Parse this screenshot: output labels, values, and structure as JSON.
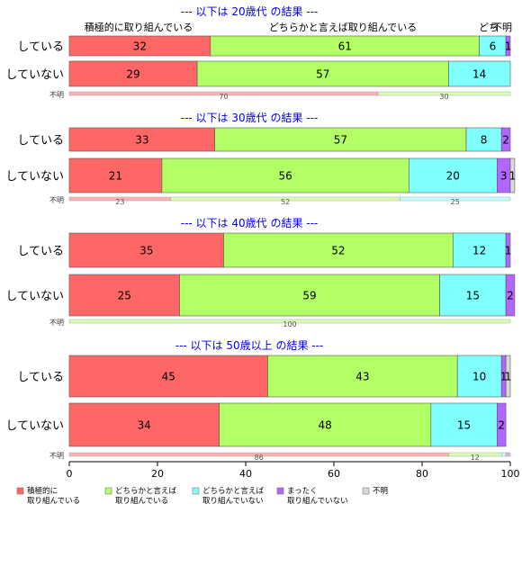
{
  "chart_data": {
    "type": "bar",
    "orientation": "horizontal",
    "stacked": true,
    "xlim": [
      0,
      100
    ],
    "x_ticks": [
      0,
      20,
      40,
      60,
      80,
      100
    ],
    "top_headers": [
      "積極的に取り組んでいる",
      "どちらかと言えば取り組んでいる",
      "どち",
      "不明"
    ],
    "categories_legend": [
      {
        "label": "積極的に\n取り組んでいる",
        "color": "#ff6666"
      },
      {
        "label": "どちらかと言えば\n取り組んでいる",
        "color": "#b3ff66"
      },
      {
        "label": "どちらかと言えば\n取り組んでいない",
        "color": "#80ffff"
      },
      {
        "label": "まったく\n取り組んでいない",
        "color": "#b266ff"
      },
      {
        "label": "不明",
        "color": "#d9d9d9"
      }
    ],
    "groups": [
      {
        "title": "--- 以下は 20歳代 の結果 ---",
        "rows": [
          {
            "label": "している",
            "values": [
              32,
              61,
              6,
              1,
              0
            ]
          },
          {
            "label": "していない",
            "values": [
              29,
              57,
              14,
              0,
              0
            ]
          }
        ],
        "unknown": {
          "label": "不明",
          "values": [
            70,
            30,
            0,
            0,
            0
          ]
        }
      },
      {
        "title": "--- 以下は 30歳代 の結果 ---",
        "rows": [
          {
            "label": "している",
            "values": [
              33,
              57,
              8,
              2,
              0
            ]
          },
          {
            "label": "していない",
            "values": [
              21,
              56,
              20,
              3,
              1
            ]
          }
        ],
        "unknown": {
          "label": "不明",
          "values": [
            23,
            52,
            25,
            0,
            0
          ]
        }
      },
      {
        "title": "--- 以下は 40歳代 の結果 ---",
        "rows": [
          {
            "label": "している",
            "values": [
              35,
              52,
              12,
              1,
              0
            ]
          },
          {
            "label": "していない",
            "values": [
              25,
              59,
              15,
              2,
              0
            ]
          }
        ],
        "unknown": {
          "label": "不明",
          "values": [
            0,
            100,
            0,
            0,
            0
          ]
        }
      },
      {
        "title": "--- 以下は 50歳以上 の結果 ---",
        "rows": [
          {
            "label": "している",
            "values": [
              45,
              43,
              10,
              1,
              1
            ]
          },
          {
            "label": "していない",
            "values": [
              34,
              48,
              15,
              2,
              0
            ]
          }
        ],
        "unknown": {
          "label": "不明",
          "values": [
            86,
            12,
            1,
            1,
            0
          ]
        }
      }
    ]
  }
}
